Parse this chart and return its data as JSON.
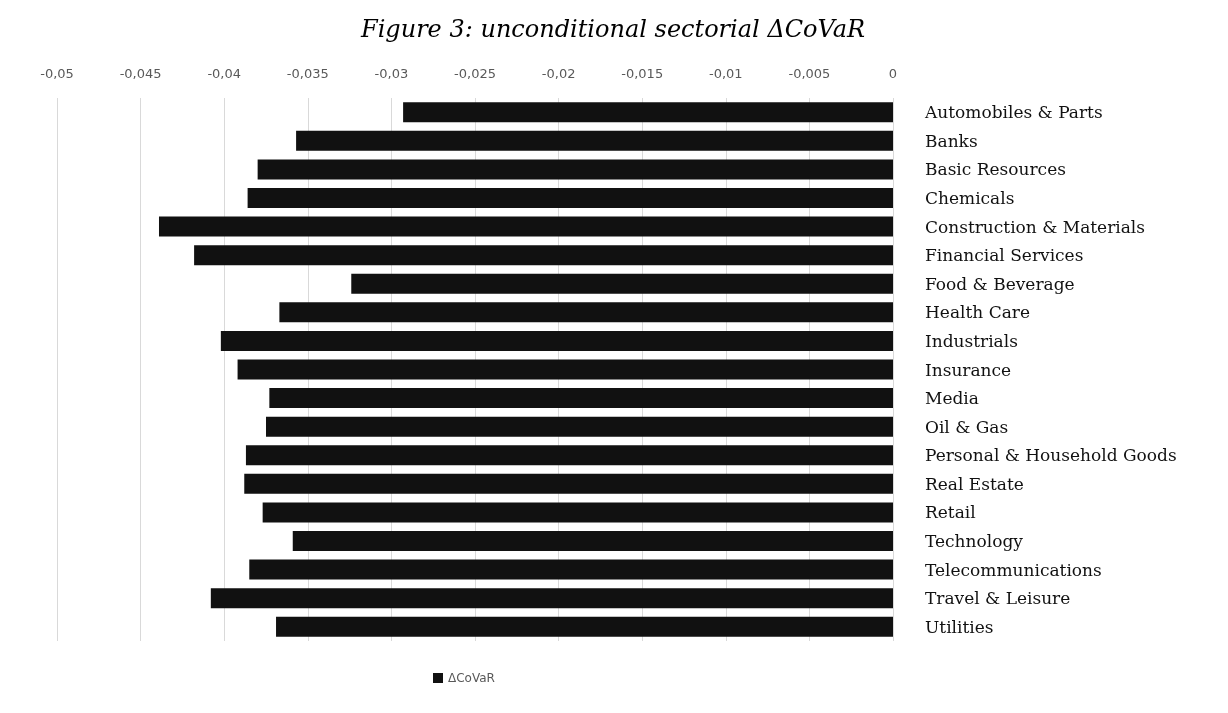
{
  "chart_data": {
    "type": "bar",
    "orientation": "horizontal",
    "title": "Figure 3: unconditional sectorial ΔCoVaR",
    "categories": [
      "Automobiles & Parts",
      "Banks",
      "Basic Resources",
      "Chemicals",
      "Construction & Materials",
      "Financial Services",
      "Food & Beverage",
      "Health Care",
      "Industrials",
      "Insurance",
      "Media",
      "Oil & Gas",
      "Personal & Household Goods",
      "Real Estate",
      "Retail",
      "Technology",
      "Telecommunications",
      "Travel & Leisure",
      "Utilities"
    ],
    "series": [
      {
        "name": "ΔCoVaR",
        "color": "#111111",
        "values": [
          -0.0293,
          -0.0357,
          -0.038,
          -0.0386,
          -0.0439,
          -0.0418,
          -0.0324,
          -0.0367,
          -0.0402,
          -0.0392,
          -0.0373,
          -0.0375,
          -0.0387,
          -0.0388,
          -0.0377,
          -0.0359,
          -0.0385,
          -0.0408,
          -0.0369
        ]
      }
    ],
    "xlim": [
      -0.05,
      0
    ],
    "xticks": [
      {
        "value": -0.05,
        "label": "-0,05"
      },
      {
        "value": -0.045,
        "label": "-0,045"
      },
      {
        "value": -0.04,
        "label": "-0,04"
      },
      {
        "value": -0.035,
        "label": "-0,035"
      },
      {
        "value": -0.03,
        "label": "-0,03"
      },
      {
        "value": -0.025,
        "label": "-0,025"
      },
      {
        "value": -0.02,
        "label": "-0,02"
      },
      {
        "value": -0.015,
        "label": "-0,015"
      },
      {
        "value": -0.01,
        "label": "-0,01"
      },
      {
        "value": -0.005,
        "label": "-0,005"
      },
      {
        "value": 0,
        "label": "0"
      }
    ],
    "grid": "x",
    "legend": "bottom"
  }
}
